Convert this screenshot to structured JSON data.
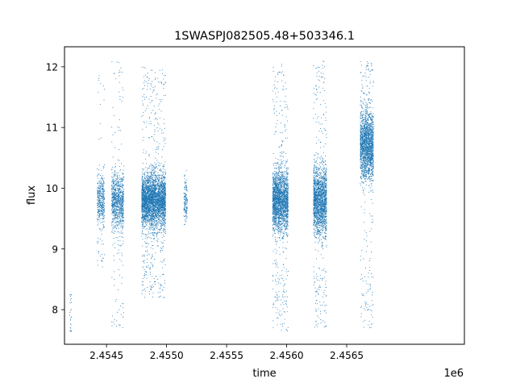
{
  "chart_data": {
    "type": "scatter",
    "title": "1SWASPJ082505.48+503346.1",
    "xlabel": "time",
    "ylabel": "flux",
    "x_offset_label": "1e6",
    "xlim": [
      2454150,
      2457480
    ],
    "ylim": [
      7.43,
      12.33
    ],
    "xticks": [
      2454500,
      2455000,
      2455500,
      2456000,
      2456500
    ],
    "xtick_labels": [
      "2.4545",
      "2.4550",
      "2.4555",
      "2.4560",
      "2.4565"
    ],
    "yticks": [
      8,
      9,
      10,
      11,
      12
    ],
    "ytick_labels": [
      "8",
      "9",
      "10",
      "11",
      "12"
    ],
    "grid": false,
    "marker_color": "#1f77b4",
    "series": [
      {
        "clusters": [
          {
            "x_range": [
              2454190,
              2454205
            ],
            "y_center": 8.0,
            "spread": 0.18,
            "outlier_range": [
              7.65,
              8.25
            ],
            "density": 0.3
          },
          {
            "x_range": [
              2454420,
              2454480
            ],
            "y_center": 9.8,
            "spread": 0.12,
            "outlier_range": [
              8.7,
              11.9
            ],
            "density": 1.2
          },
          {
            "x_range": [
              2454540,
              2454640
            ],
            "y_center": 9.8,
            "spread": 0.15,
            "outlier_range": [
              7.7,
              12.1
            ],
            "density": 1.6
          },
          {
            "x_range": [
              2454790,
              2454990
            ],
            "y_center": 9.8,
            "spread": 0.14,
            "outlier_range": [
              8.2,
              12.0
            ],
            "density": 3.0
          },
          {
            "x_range": [
              2455140,
              2455170
            ],
            "y_center": 9.8,
            "spread": 0.1,
            "outlier_range": [
              9.4,
              10.3
            ],
            "density": 0.8
          },
          {
            "x_range": [
              2455880,
              2456010
            ],
            "y_center": 9.8,
            "spread": 0.16,
            "outlier_range": [
              7.65,
              12.05
            ],
            "density": 3.0
          },
          {
            "x_range": [
              2456220,
              2456330
            ],
            "y_center": 9.8,
            "spread": 0.17,
            "outlier_range": [
              7.7,
              12.1
            ],
            "density": 3.0
          },
          {
            "x_range": [
              2456610,
              2456720
            ],
            "y_center": 10.7,
            "spread": 0.17,
            "outlier_range": [
              7.7,
              12.1
            ],
            "density": 3.0
          }
        ]
      }
    ]
  }
}
